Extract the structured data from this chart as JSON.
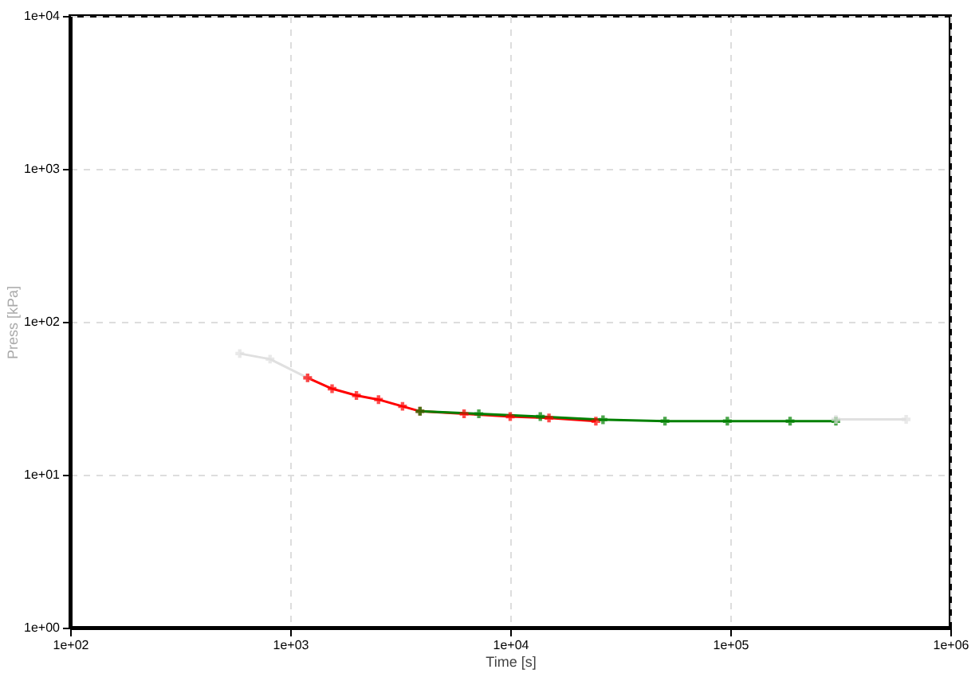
{
  "chart_data": {
    "type": "line",
    "xlabel": "Time [s]",
    "ylabel": "Press [kPa]",
    "xlim": [
      100,
      1000000
    ],
    "ylim": [
      1,
      10000
    ],
    "log": "xy",
    "grid": true,
    "marker": "cross",
    "line_style": "solid",
    "xticks": [
      {
        "value": 100,
        "label": "1e+02"
      },
      {
        "value": 1000,
        "label": "1e+03"
      },
      {
        "value": 10000,
        "label": "1e+04"
      },
      {
        "value": 100000,
        "label": "1e+05"
      },
      {
        "value": 1000000,
        "label": "1e+06"
      }
    ],
    "yticks": [
      {
        "value": 1,
        "label": "1e+00"
      },
      {
        "value": 10,
        "label": "1e+01"
      },
      {
        "value": 100,
        "label": "1e+02"
      },
      {
        "value": 1000,
        "label": "1e+03"
      },
      {
        "value": 10000,
        "label": "1e+04"
      }
    ],
    "series": [
      {
        "color": "#e0e0e0",
        "x": [
          590,
          810,
          1200
        ],
        "values": [
          62,
          57,
          43
        ]
      },
      {
        "color": "#ff0000",
        "x": [
          1200,
          1550,
          2000,
          2520,
          3240,
          3890,
          6170,
          10000,
          15000,
          24500
        ],
        "values": [
          43,
          36.5,
          33,
          31,
          28,
          26,
          25,
          24,
          23.5,
          22.4
        ]
      },
      {
        "color": "#008000",
        "x": [
          3890,
          7200,
          13700,
          26400,
          50500,
          97000,
          187000,
          302000
        ],
        "values": [
          26,
          25,
          24,
          22.9,
          22.4,
          22.4,
          22.4,
          22.4
        ]
      },
      {
        "color": "#e0e0e0",
        "x": [
          302000,
          630000
        ],
        "values": [
          23,
          23
        ]
      }
    ]
  }
}
